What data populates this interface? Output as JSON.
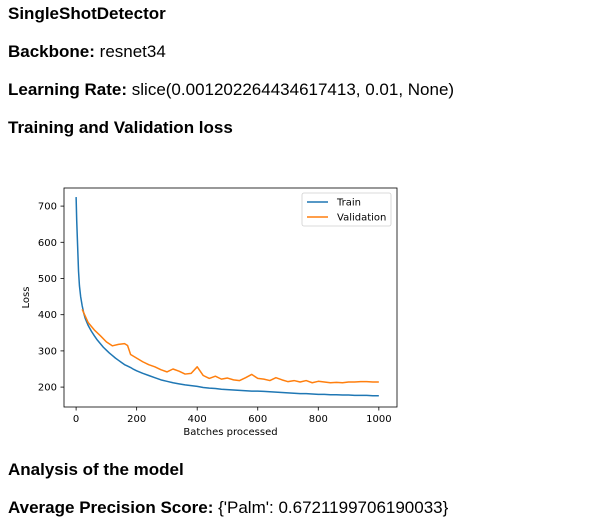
{
  "report": {
    "model_name": "SingleShotDetector",
    "backbone_label": "Backbone:",
    "backbone_value": "resnet34",
    "lr_label": "Learning Rate:",
    "lr_value": "slice(0.001202264434617413, 0.01, None)",
    "loss_heading": "Training and Validation loss",
    "analysis_heading": "Analysis of the model",
    "ap_label": "Average Precision Score:",
    "ap_value": "{'Palm': 0.6721199706190033}"
  },
  "chart_data": {
    "type": "line",
    "title": "",
    "xlabel": "Batches processed",
    "ylabel": "Loss",
    "xlim": [
      -40,
      1060
    ],
    "ylim": [
      145,
      750
    ],
    "xticks": [
      0,
      200,
      400,
      600,
      800,
      1000
    ],
    "yticks": [
      200,
      300,
      400,
      500,
      600,
      700
    ],
    "grid": false,
    "legend": "top-right",
    "series": [
      {
        "name": "Train",
        "color": "#1f77b4",
        "x": [
          0,
          2,
          5,
          8,
          11,
          15,
          20,
          25,
          30,
          40,
          50,
          60,
          70,
          80,
          90,
          100,
          110,
          120,
          130,
          140,
          150,
          160,
          170,
          180,
          190,
          200,
          220,
          240,
          260,
          280,
          300,
          320,
          340,
          360,
          380,
          400,
          420,
          440,
          460,
          480,
          500,
          520,
          540,
          560,
          580,
          600,
          620,
          640,
          660,
          680,
          700,
          720,
          740,
          760,
          780,
          800,
          820,
          840,
          860,
          880,
          900,
          920,
          940,
          960,
          980,
          1000
        ],
        "y": [
          725,
          660,
          590,
          520,
          480,
          450,
          425,
          405,
          390,
          370,
          355,
          342,
          330,
          320,
          310,
          302,
          294,
          287,
          280,
          274,
          268,
          262,
          258,
          254,
          249,
          245,
          238,
          232,
          226,
          220,
          216,
          212,
          209,
          206,
          204,
          202,
          199,
          197,
          196,
          194,
          193,
          192,
          191,
          190,
          189,
          189,
          188,
          187,
          186,
          185,
          184,
          183,
          182,
          182,
          181,
          180,
          180,
          179,
          179,
          178,
          178,
          177,
          177,
          177,
          176,
          176
        ]
      },
      {
        "name": "Validation",
        "color": "#ff7f0e",
        "x": [
          20,
          40,
          60,
          80,
          100,
          120,
          140,
          160,
          170,
          180,
          200,
          220,
          240,
          260,
          280,
          300,
          320,
          340,
          360,
          380,
          400,
          420,
          440,
          460,
          480,
          500,
          520,
          540,
          560,
          580,
          600,
          620,
          640,
          660,
          680,
          700,
          720,
          740,
          760,
          780,
          800,
          820,
          840,
          860,
          880,
          900,
          920,
          940,
          960,
          980,
          1000
        ],
        "y": [
          415,
          378,
          358,
          342,
          325,
          314,
          318,
          320,
          315,
          290,
          280,
          270,
          262,
          256,
          248,
          242,
          250,
          244,
          236,
          238,
          256,
          232,
          224,
          230,
          222,
          225,
          220,
          218,
          226,
          235,
          224,
          222,
          218,
          226,
          220,
          215,
          218,
          214,
          218,
          212,
          216,
          214,
          212,
          213,
          212,
          214,
          214,
          215,
          215,
          214,
          214
        ]
      }
    ]
  }
}
